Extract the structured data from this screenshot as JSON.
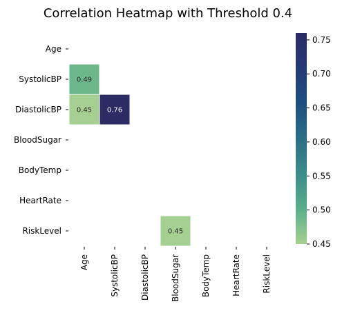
{
  "chart_data": {
    "type": "heatmap",
    "title": "Correlation Heatmap with Threshold 0.4",
    "variables": [
      "Age",
      "SystolicBP",
      "DiastolicBP",
      "BloodSugar",
      "BodyTemp",
      "HeartRate",
      "RiskLevel"
    ],
    "cells": [
      {
        "row": "SystolicBP",
        "col": "Age",
        "value": 0.49,
        "label": "0.49"
      },
      {
        "row": "DiastolicBP",
        "col": "Age",
        "value": 0.45,
        "label": "0.45"
      },
      {
        "row": "DiastolicBP",
        "col": "SystolicBP",
        "value": 0.76,
        "label": "0.76"
      },
      {
        "row": "RiskLevel",
        "col": "BloodSugar",
        "value": 0.45,
        "label": "0.45"
      }
    ],
    "colorbar": {
      "vmin": 0.45,
      "vmax": 0.76,
      "ticks": [
        "0.45",
        "0.50",
        "0.55",
        "0.60",
        "0.65",
        "0.70",
        "0.75"
      ],
      "colormap": "crest",
      "colors": [
        "#a5d091",
        "#5aae89",
        "#3c8c8a",
        "#2c6e85",
        "#1e4f7e",
        "#243a75",
        "#2c2b64"
      ]
    },
    "mask": "upper-triangle-and-below-threshold",
    "grid": false
  }
}
